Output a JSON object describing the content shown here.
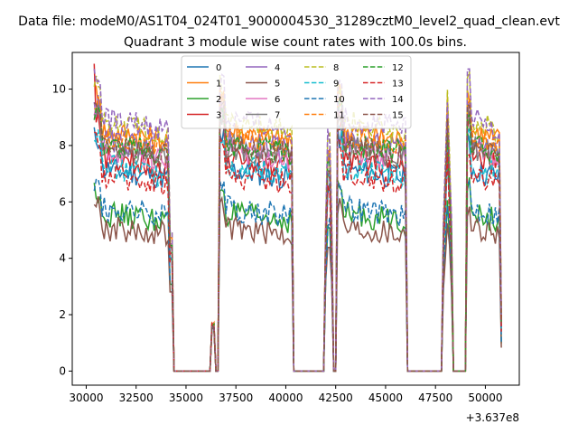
{
  "figure": {
    "suptitle": "Data file: modeM0/AS1T04_024T01_9000004530_31289cztM0_level2_quad_clean.evt"
  },
  "chart_data": {
    "type": "line",
    "title": "Quadrant 3 module wise count rates with 100.0s bins.",
    "xlabel": "",
    "ylabel": "",
    "x_offset_label": "+3.637e8",
    "xlim": [
      29300,
      51700
    ],
    "ylim": [
      -0.5,
      11.3
    ],
    "x_ticks": [
      30000,
      32500,
      35000,
      37500,
      40000,
      42500,
      45000,
      47500,
      50000
    ],
    "x_tick_labels": [
      "30000",
      "32500",
      "35000",
      "37500",
      "40000",
      "42500",
      "45000",
      "47500",
      "50000"
    ],
    "y_ticks": [
      0,
      2,
      4,
      6,
      8,
      10
    ],
    "y_tick_labels": [
      "0",
      "2",
      "4",
      "6",
      "8",
      "10"
    ],
    "bin_width": 100,
    "legend": {
      "location": "upper center",
      "ncol": 4
    },
    "segments": [
      {
        "start": 30400,
        "end": 34300,
        "ramp_end": 0.0
      },
      {
        "start": 36300,
        "end": 36400,
        "spike": true
      },
      {
        "start": 36700,
        "end": 40300,
        "ramp_end": 0.0
      },
      {
        "start": 42000,
        "end": 42300,
        "spike": true
      },
      {
        "start": 42600,
        "end": 46000,
        "ramp_end": 0.0
      },
      {
        "start": 47900,
        "end": 48300,
        "spike": true
      },
      {
        "start": 49100,
        "end": 50800,
        "ramp_end": 1.4
      }
    ],
    "zero_ranges": [
      [
        34400,
        36200
      ],
      [
        36500,
        36600
      ],
      [
        40400,
        41900
      ],
      [
        42400,
        42500
      ],
      [
        46100,
        47800
      ],
      [
        48400,
        49000
      ]
    ],
    "series": [
      {
        "name": "0",
        "color": "#1f77b4",
        "style": "solid",
        "level": 7.2
      },
      {
        "name": "1",
        "color": "#ff7f0e",
        "style": "solid",
        "level": 8.6
      },
      {
        "name": "2",
        "color": "#2ca02c",
        "style": "solid",
        "level": 5.6
      },
      {
        "name": "3",
        "color": "#d62728",
        "style": "solid",
        "level": 7.6
      },
      {
        "name": "4",
        "color": "#9467bd",
        "style": "solid",
        "level": 8.2
      },
      {
        "name": "5",
        "color": "#8c564b",
        "style": "solid",
        "level": 5.1
      },
      {
        "name": "6",
        "color": "#e377c2",
        "style": "solid",
        "level": 7.9
      },
      {
        "name": "7",
        "color": "#7f7f7f",
        "style": "solid",
        "level": 8.0
      },
      {
        "name": "8",
        "color": "#bcbd22",
        "style": "dashed",
        "level": 8.9
      },
      {
        "name": "9",
        "color": "#17becf",
        "style": "dashed",
        "level": 7.3
      },
      {
        "name": "10",
        "color": "#1f77b4",
        "style": "dashed",
        "level": 5.8
      },
      {
        "name": "11",
        "color": "#ff7f0e",
        "style": "dashed",
        "level": 8.4
      },
      {
        "name": "12",
        "color": "#2ca02c",
        "style": "dashed",
        "level": 8.1
      },
      {
        "name": "13",
        "color": "#d62728",
        "style": "dashed",
        "level": 7.0
      },
      {
        "name": "14",
        "color": "#9467bd",
        "style": "dashed",
        "level": 9.0
      },
      {
        "name": "15",
        "color": "#8c564b",
        "style": "dashed",
        "level": 8.0
      }
    ]
  }
}
